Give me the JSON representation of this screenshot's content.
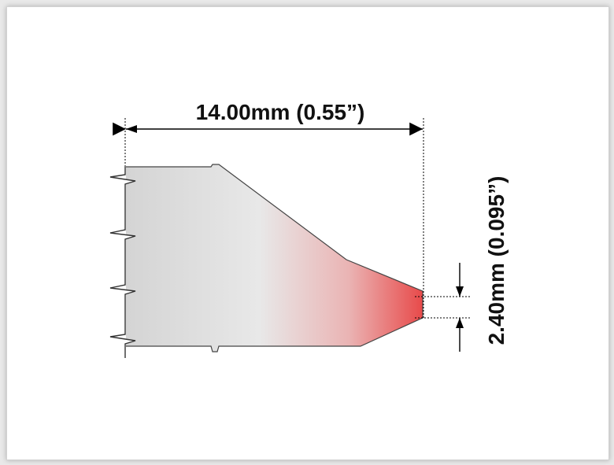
{
  "dimensions": {
    "length_label": "14.00mm (0.55”)",
    "diameter_label": "2.40mm (0.095”)"
  },
  "colors": {
    "tip_gradient_start": "#d3d3d3",
    "tip_gradient_mid": "#e9e9e9",
    "tip_gradient_end": "#e84c4c",
    "line": "#000000",
    "background": "#ffffff"
  }
}
